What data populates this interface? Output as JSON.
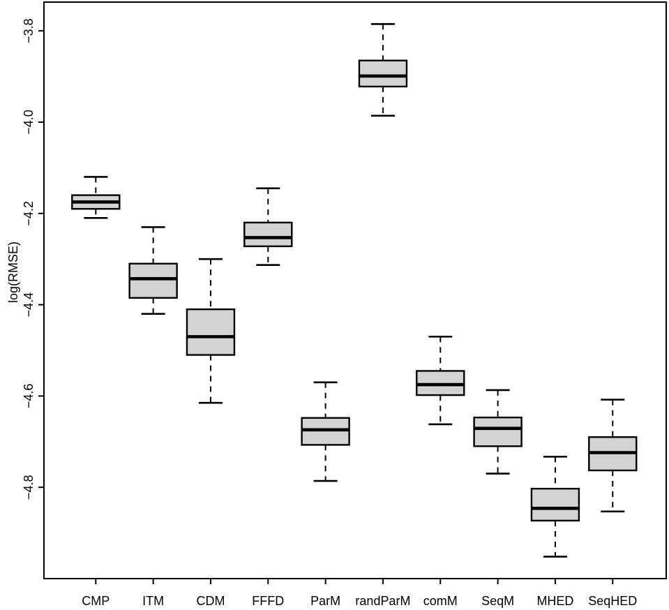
{
  "chart_data": {
    "type": "boxplot",
    "title": "",
    "xlabel": "",
    "ylabel": "log(RMSE)",
    "categories": [
      "CMP",
      "ITM",
      "CDM",
      "FFFD",
      "ParM",
      "randParM",
      "comM",
      "SeqM",
      "MHED",
      "SeqHED"
    ],
    "boxes": [
      {
        "category": "CMP",
        "whisker_low": -4.21,
        "q1": -4.19,
        "median": -4.175,
        "q3": -4.16,
        "whisker_high": -4.12
      },
      {
        "category": "ITM",
        "whisker_low": -4.42,
        "q1": -4.385,
        "median": -4.343,
        "q3": -4.31,
        "whisker_high": -4.23
      },
      {
        "category": "CDM",
        "whisker_low": -4.615,
        "q1": -4.51,
        "median": -4.47,
        "q3": -4.41,
        "whisker_high": -4.3
      },
      {
        "category": "FFFD",
        "whisker_low": -4.313,
        "q1": -4.272,
        "median": -4.253,
        "q3": -4.22,
        "whisker_high": -4.145
      },
      {
        "category": "ParM",
        "whisker_low": -4.786,
        "q1": -4.707,
        "median": -4.674,
        "q3": -4.648,
        "whisker_high": -4.57
      },
      {
        "category": "randParM",
        "whisker_low": -3.986,
        "q1": -3.922,
        "median": -3.899,
        "q3": -3.865,
        "whisker_high": -3.785
      },
      {
        "category": "comM",
        "whisker_low": -4.662,
        "q1": -4.598,
        "median": -4.575,
        "q3": -4.545,
        "whisker_high": -4.47
      },
      {
        "category": "SeqM",
        "whisker_low": -4.77,
        "q1": -4.71,
        "median": -4.671,
        "q3": -4.647,
        "whisker_high": -4.587
      },
      {
        "category": "MHED",
        "whisker_low": -4.952,
        "q1": -4.873,
        "median": -4.846,
        "q3": -4.803,
        "whisker_high": -4.733
      },
      {
        "category": "SeqHED",
        "whisker_low": -4.853,
        "q1": -4.763,
        "median": -4.724,
        "q3": -4.69,
        "whisker_high": -4.608
      }
    ],
    "yticks": {
      "values": [
        -3.8,
        -4.0,
        -4.2,
        -4.4,
        -4.6,
        -4.8
      ],
      "labels": [
        "−3.8",
        "−4.0",
        "−4.2",
        "−4.4",
        "−4.6",
        "−4.8"
      ]
    },
    "ylim": [
      -5.0,
      -3.737
    ],
    "grid": false,
    "legend": null,
    "colors": {
      "box_fill": "#d3d3d3",
      "stroke": "#000000",
      "background": "#ffffff"
    },
    "whisker_style": "dashed"
  }
}
